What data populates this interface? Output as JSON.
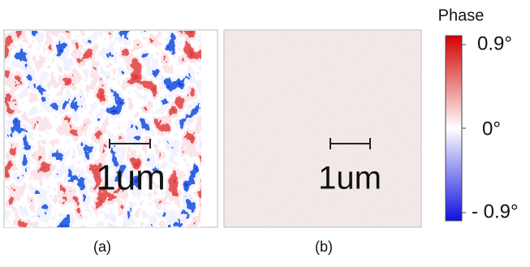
{
  "panels": [
    {
      "label": "(a)",
      "scale_bar": "1um"
    },
    {
      "label": "(b)",
      "scale_bar": "1um"
    }
  ],
  "colorbar": {
    "title": "Phase",
    "ticks": [
      "0.9°",
      "0°",
      "- 0.9°"
    ]
  }
}
